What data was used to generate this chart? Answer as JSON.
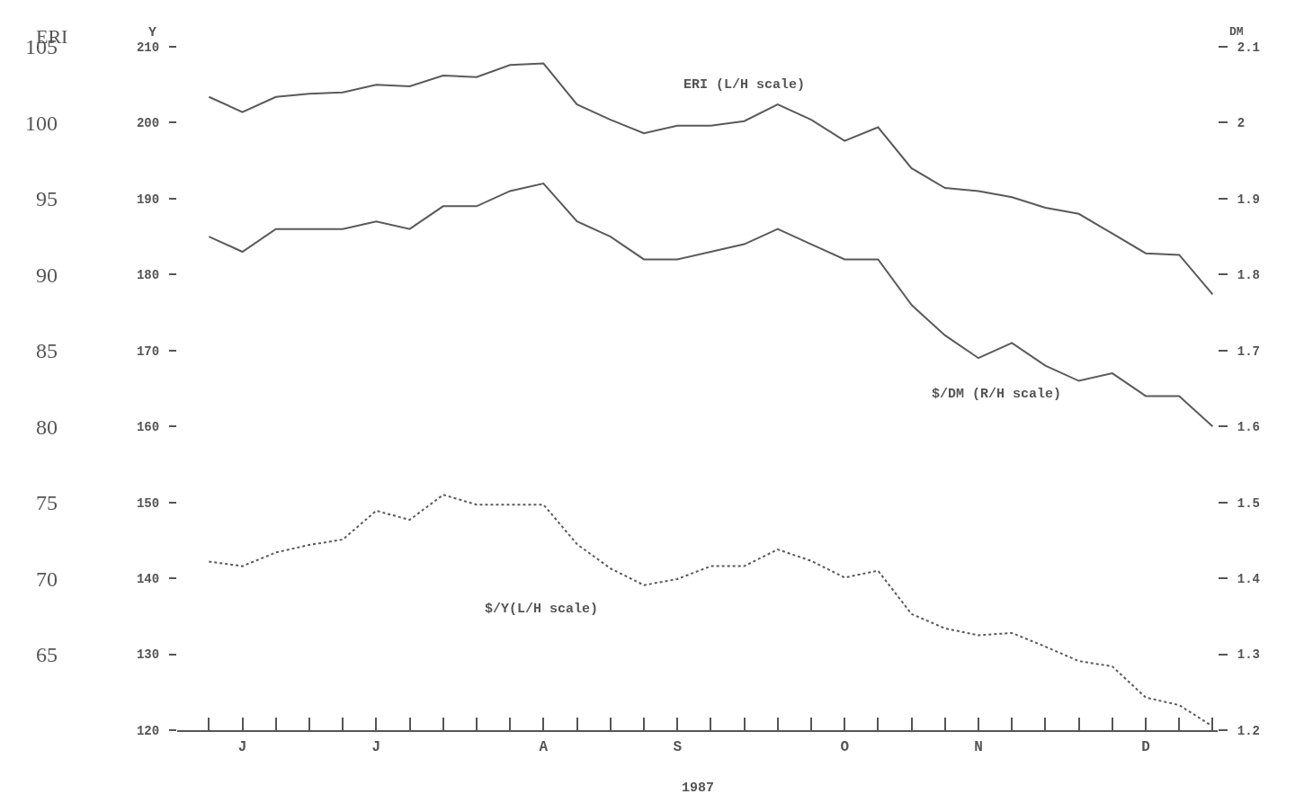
{
  "chart_data": {
    "type": "line",
    "xlabel": "1987",
    "ylabel": "Y",
    "y2label": "DM",
    "y3label": "ERI",
    "categories": [
      null,
      "J",
      null,
      null,
      null,
      "J",
      null,
      null,
      null,
      null,
      "A",
      null,
      null,
      null,
      "S",
      null,
      null,
      null,
      null,
      "O",
      null,
      null,
      null,
      "N",
      null,
      null,
      null,
      null,
      "D",
      null,
      null
    ],
    "ylim": [
      120,
      210
    ],
    "yticks": [
      120,
      130,
      140,
      150,
      160,
      170,
      180,
      190,
      200,
      210
    ],
    "y2lim": [
      1.2,
      2.1
    ],
    "y2ticks": [
      1.2,
      1.3,
      1.4,
      1.5,
      1.6,
      1.7,
      1.8,
      1.9,
      2,
      2.1
    ],
    "y3lim": [
      60,
      105
    ],
    "y3ticks": [
      65,
      70,
      75,
      80,
      85,
      90,
      95,
      100,
      105
    ],
    "grid": false,
    "legend": false,
    "marker": "none",
    "series": [
      {
        "name": "ERI (L/H scale)",
        "color": "#5a5a5a",
        "axis": "y3",
        "line_style": "solid",
        "values": [
          101.7,
          100.7,
          101.7,
          101.9,
          102.0,
          102.5,
          102.4,
          103.1,
          103.0,
          103.8,
          103.9,
          101.2,
          100.2,
          99.3,
          99.8,
          99.8,
          100.1,
          101.2,
          100.2,
          98.8,
          99.7,
          97.0,
          95.7,
          95.5,
          95.1,
          94.4,
          94.0,
          92.7,
          91.4,
          91.3,
          88.7
        ]
      },
      {
        "name": "$/DM (R/H scale)",
        "color": "#5a5a5a",
        "axis": "y2",
        "line_style": "solid",
        "values": [
          1.85,
          1.83,
          1.86,
          1.86,
          1.86,
          1.87,
          1.86,
          1.89,
          1.89,
          1.91,
          1.92,
          1.87,
          1.85,
          1.82,
          1.82,
          1.83,
          1.84,
          1.86,
          1.84,
          1.82,
          1.82,
          1.76,
          1.72,
          1.69,
          1.71,
          1.68,
          1.66,
          1.67,
          1.64,
          1.64,
          1.6
        ]
      },
      {
        "name": "$/Y(L/H scale)",
        "color": "#5a5a5a",
        "axis": "y",
        "line_style": "dotted",
        "values": [
          142.2,
          141.6,
          143.4,
          144.4,
          145.1,
          148.9,
          147.7,
          151.0,
          149.7,
          149.7,
          149.7,
          144.5,
          141.3,
          139.1,
          139.9,
          141.6,
          141.6,
          143.8,
          142.3,
          140.1,
          141.0,
          135.3,
          133.4,
          132.5,
          132.8,
          131.0,
          129.1,
          128.4,
          124.3,
          123.3,
          120.5
        ]
      }
    ]
  }
}
